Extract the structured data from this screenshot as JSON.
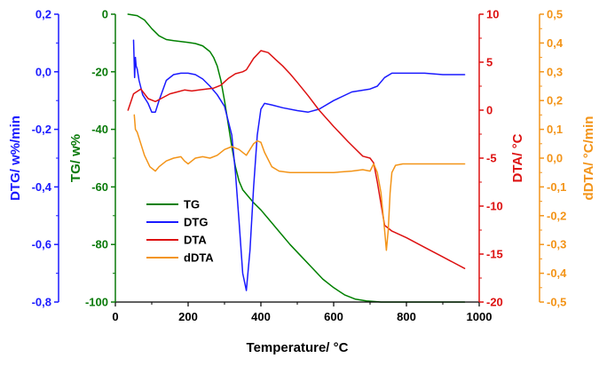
{
  "chart_data": {
    "type": "line",
    "xlabel": "Temperature/ °C",
    "xlim": [
      0,
      1000
    ],
    "xticks": [
      "0",
      "200",
      "400",
      "600",
      "800",
      "1000"
    ],
    "legend_position": "bottom-left",
    "axes": {
      "dtg": {
        "label": "DTG/ w%/min",
        "color": "#1a1aff",
        "range": [
          -0.8,
          0.2
        ],
        "ticks": [
          "0,2",
          "0,0",
          "-0,2",
          "-0,4",
          "-0,6",
          "-0,8"
        ]
      },
      "tg": {
        "label": "TG/ w%",
        "color": "#0a7a0a",
        "range": [
          -100,
          0
        ],
        "ticks": [
          "0",
          "-20",
          "-40",
          "-60",
          "-80",
          "-100"
        ]
      },
      "dta": {
        "label": "DTA/ °C",
        "color": "#dd1111",
        "range": [
          -20,
          10
        ],
        "ticks": [
          "10",
          "5",
          "0",
          "-5",
          "-10",
          "-15",
          "-20"
        ]
      },
      "ddta": {
        "label": "dDTA/ °C/min",
        "color": "#f39418",
        "range": [
          -0.5,
          0.5
        ],
        "ticks": [
          "0,5",
          "0,4",
          "0,3",
          "0,2",
          "0,1",
          "0,0",
          "-0,1",
          "-0,2",
          "-0,3",
          "-0,4",
          "-0,5"
        ]
      }
    },
    "series": [
      {
        "name": "TG",
        "axis": "tg",
        "color": "#008000",
        "x": [
          35,
          60,
          80,
          100,
          120,
          140,
          160,
          180,
          200,
          220,
          240,
          260,
          270,
          280,
          290,
          300,
          310,
          320,
          330,
          340,
          350,
          360,
          370,
          380,
          400,
          420,
          450,
          480,
          510,
          540,
          570,
          600,
          630,
          660,
          690,
          710,
          730,
          750,
          800,
          900,
          960
        ],
        "y": [
          0,
          -0.5,
          -2,
          -5,
          -7.5,
          -8.8,
          -9.2,
          -9.5,
          -9.8,
          -10.2,
          -11,
          -13,
          -15,
          -18,
          -23,
          -30,
          -38,
          -46,
          -53,
          -58,
          -61,
          -62.5,
          -64,
          -65.5,
          -68,
          -71,
          -75.5,
          -80,
          -84,
          -88,
          -92,
          -95,
          -97.5,
          -99,
          -99.6,
          -99.8,
          -100,
          -100,
          -100,
          -100,
          -100
        ]
      },
      {
        "name": "DTG",
        "axis": "dtg",
        "color": "#1a1aff",
        "x": [
          50,
          53,
          55,
          57,
          60,
          65,
          75,
          90,
          100,
          110,
          120,
          140,
          160,
          180,
          200,
          220,
          240,
          260,
          280,
          300,
          320,
          330,
          340,
          350,
          360,
          370,
          380,
          390,
          400,
          410,
          430,
          460,
          500,
          530,
          560,
          600,
          650,
          700,
          720,
          740,
          760,
          800,
          850,
          900,
          960
        ],
        "y": [
          0.11,
          -0.02,
          0.05,
          0.02,
          0.01,
          -0.03,
          -0.08,
          -0.11,
          -0.14,
          -0.14,
          -0.1,
          -0.03,
          -0.01,
          -0.005,
          -0.005,
          -0.01,
          -0.025,
          -0.05,
          -0.08,
          -0.12,
          -0.22,
          -0.35,
          -0.52,
          -0.7,
          -0.76,
          -0.62,
          -0.4,
          -0.22,
          -0.13,
          -0.11,
          -0.115,
          -0.125,
          -0.135,
          -0.14,
          -0.13,
          -0.1,
          -0.07,
          -0.06,
          -0.05,
          -0.02,
          -0.005,
          -0.005,
          -0.005,
          -0.01,
          -0.01
        ]
      },
      {
        "name": "DTA",
        "axis": "dta",
        "color": "#dd1111",
        "x": [
          35,
          50,
          70,
          90,
          110,
          130,
          150,
          170,
          190,
          210,
          230,
          250,
          270,
          290,
          310,
          330,
          350,
          360,
          380,
          400,
          420,
          440,
          460,
          480,
          500,
          530,
          560,
          600,
          640,
          680,
          700,
          710,
          720,
          740,
          760,
          800,
          850,
          900,
          960
        ],
        "y": [
          0,
          1.7,
          2.2,
          1.2,
          0.9,
          1.3,
          1.7,
          1.9,
          2.1,
          2.0,
          2.1,
          2.2,
          2.3,
          2.6,
          3.3,
          3.8,
          4.0,
          4.2,
          5.4,
          6.2,
          6.0,
          5.3,
          4.6,
          3.8,
          2.9,
          1.5,
          0,
          -1.7,
          -3.3,
          -4.8,
          -5.0,
          -5.5,
          -7.5,
          -12.0,
          -12.6,
          -13.3,
          -14.3,
          -15.3,
          -16.5
        ]
      },
      {
        "name": "dDTA",
        "axis": "ddta",
        "color": "#f39418",
        "x": [
          52,
          55,
          60,
          70,
          80,
          95,
          110,
          120,
          140,
          160,
          180,
          190,
          200,
          210,
          220,
          240,
          260,
          280,
          300,
          320,
          340,
          360,
          370,
          380,
          390,
          400,
          410,
          430,
          450,
          480,
          500,
          550,
          600,
          650,
          680,
          700,
          710,
          720,
          730,
          740,
          745,
          750,
          755,
          760,
          770,
          790,
          850,
          900,
          960
        ],
        "y": [
          0.15,
          0.1,
          0.09,
          0.05,
          0.01,
          -0.03,
          -0.045,
          -0.03,
          -0.01,
          0.0,
          0.005,
          -0.01,
          -0.02,
          -0.01,
          0.0,
          0.005,
          0.0,
          0.01,
          0.03,
          0.04,
          0.03,
          0.01,
          0.03,
          0.05,
          0.06,
          0.055,
          0.02,
          -0.03,
          -0.045,
          -0.05,
          -0.05,
          -0.05,
          -0.05,
          -0.045,
          -0.04,
          -0.045,
          -0.02,
          -0.05,
          -0.12,
          -0.25,
          -0.32,
          -0.25,
          -0.12,
          -0.05,
          -0.025,
          -0.02,
          -0.02,
          -0.02,
          -0.02
        ]
      }
    ]
  }
}
